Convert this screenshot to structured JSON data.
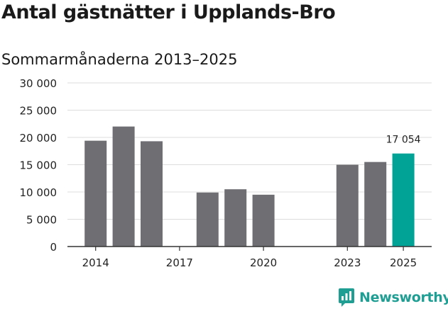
{
  "title": "Antal gästnätter i Upplands-Bro",
  "subtitle": "Sommarmånaderna 2013–2025",
  "brand": "Newsworthy",
  "colors": {
    "bar": "#6f6e73",
    "highlight": "#00a396",
    "brand": "#1f9e94"
  },
  "chart_data": {
    "type": "bar",
    "title": "Antal gästnätter i Upplands-Bro",
    "subtitle": "Sommarmånaderna 2013–2025",
    "xlabel": "",
    "ylabel": "",
    "ylim": [
      0,
      30000
    ],
    "yticks": [
      0,
      5000,
      10000,
      15000,
      20000,
      25000,
      30000
    ],
    "ytick_labels": [
      "0",
      "5 000",
      "10 000",
      "15 000",
      "20 000",
      "25 000",
      "30 000"
    ],
    "grid": true,
    "xtick_labels_shown": [
      "2014",
      "2017",
      "2020",
      "2023",
      "2025"
    ],
    "categories": [
      "2014",
      "2015",
      "2016",
      "2017",
      "2018",
      "2019",
      "2020",
      "2021",
      "2022",
      "2023",
      "2024",
      "2025"
    ],
    "values": [
      19400,
      22000,
      19300,
      null,
      9900,
      10500,
      9500,
      null,
      null,
      15000,
      15500,
      17054
    ],
    "highlight_category": "2025",
    "annotations": [
      {
        "category": "2025",
        "text": "17 054"
      }
    ]
  }
}
